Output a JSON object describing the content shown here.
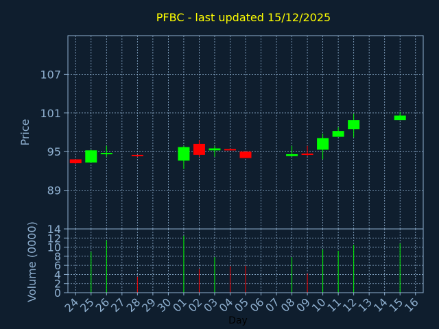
{
  "colors": {
    "background": "#0f1e2e",
    "plot_border": "#8fb0d0",
    "grid": "#8fb0d0",
    "up": "#00ff00",
    "down": "#ff0000",
    "title": "#ffff00",
    "tick": "#8fb0d0",
    "xlabel": "#000000"
  },
  "chart_data": [
    {
      "type": "candlestick",
      "title": "PFBC - last updated 15/12/2025",
      "ylabel": "Price",
      "ylim": [
        83,
        113
      ],
      "yticks": [
        "89",
        "95",
        "101",
        "107"
      ],
      "ytick_values": [
        89,
        95,
        101,
        107
      ],
      "grid": true,
      "candles": [
        {
          "day": "24",
          "open": 93.8,
          "high": 93.8,
          "low": 93.1,
          "close": 93.2
        },
        {
          "day": "25",
          "open": 93.3,
          "high": 95.3,
          "low": 93.3,
          "close": 95.2
        },
        {
          "day": "26",
          "open": 94.7,
          "high": 95.9,
          "low": 94.2,
          "close": 94.8
        },
        {
          "day": "28",
          "open": 94.5,
          "high": 94.5,
          "low": 94.2,
          "close": 94.3
        },
        {
          "day": "01",
          "open": 93.6,
          "high": 95.9,
          "low": 92.3,
          "close": 95.7
        },
        {
          "day": "02",
          "open": 96.2,
          "high": 96.8,
          "low": 94.2,
          "close": 94.5
        },
        {
          "day": "03",
          "open": 95.2,
          "high": 95.9,
          "low": 94.2,
          "close": 95.5
        },
        {
          "day": "04",
          "open": 95.4,
          "high": 95.5,
          "low": 95.2,
          "close": 95.3
        },
        {
          "day": "05",
          "open": 95.0,
          "high": 95.0,
          "low": 94.0,
          "close": 94.0
        },
        {
          "day": "08",
          "open": 94.3,
          "high": 95.9,
          "low": 94.2,
          "close": 94.6
        },
        {
          "day": "09",
          "open": 94.7,
          "high": 95.9,
          "low": 94.3,
          "close": 94.5
        },
        {
          "day": "10",
          "open": 95.3,
          "high": 97.8,
          "low": 93.8,
          "close": 97.1
        },
        {
          "day": "11",
          "open": 97.3,
          "high": 98.8,
          "low": 97.3,
          "close": 98.2
        },
        {
          "day": "12",
          "open": 98.5,
          "high": 100.9,
          "low": 97.2,
          "close": 99.9
        },
        {
          "day": "15",
          "open": 99.9,
          "high": 101.2,
          "low": 99.9,
          "close": 100.6
        }
      ],
      "ticks_x": [
        "24",
        "25",
        "26",
        "27",
        "28",
        "29",
        "30",
        "01",
        "02",
        "03",
        "04",
        "05",
        "06",
        "07",
        "08",
        "09",
        "10",
        "11",
        "12",
        "13",
        "14",
        "15",
        "16"
      ]
    },
    {
      "type": "bar",
      "ylabel": "Volume (0000)",
      "xlabel": "Day",
      "ylim": [
        0,
        14
      ],
      "yticks": [
        "0",
        "2",
        "4",
        "6",
        "8",
        "10",
        "12",
        "14"
      ],
      "ytick_values": [
        0,
        2,
        4,
        6,
        8,
        10,
        12,
        14
      ],
      "bars": [
        {
          "day": "25",
          "value": 9.0,
          "direction": "up"
        },
        {
          "day": "26",
          "value": 11.5,
          "direction": "up"
        },
        {
          "day": "28",
          "value": 3.5,
          "direction": "down"
        },
        {
          "day": "01",
          "value": 12.5,
          "direction": "up"
        },
        {
          "day": "02",
          "value": 5.2,
          "direction": "down"
        },
        {
          "day": "03",
          "value": 7.8,
          "direction": "up"
        },
        {
          "day": "04",
          "value": 5.8,
          "direction": "down"
        },
        {
          "day": "05",
          "value": 5.9,
          "direction": "down"
        },
        {
          "day": "08",
          "value": 7.8,
          "direction": "up"
        },
        {
          "day": "09",
          "value": 4.2,
          "direction": "down"
        },
        {
          "day": "10",
          "value": 9.5,
          "direction": "up"
        },
        {
          "day": "11",
          "value": 9.2,
          "direction": "up"
        },
        {
          "day": "12",
          "value": 10.5,
          "direction": "up"
        },
        {
          "day": "15",
          "value": 10.8,
          "direction": "up"
        }
      ]
    }
  ]
}
